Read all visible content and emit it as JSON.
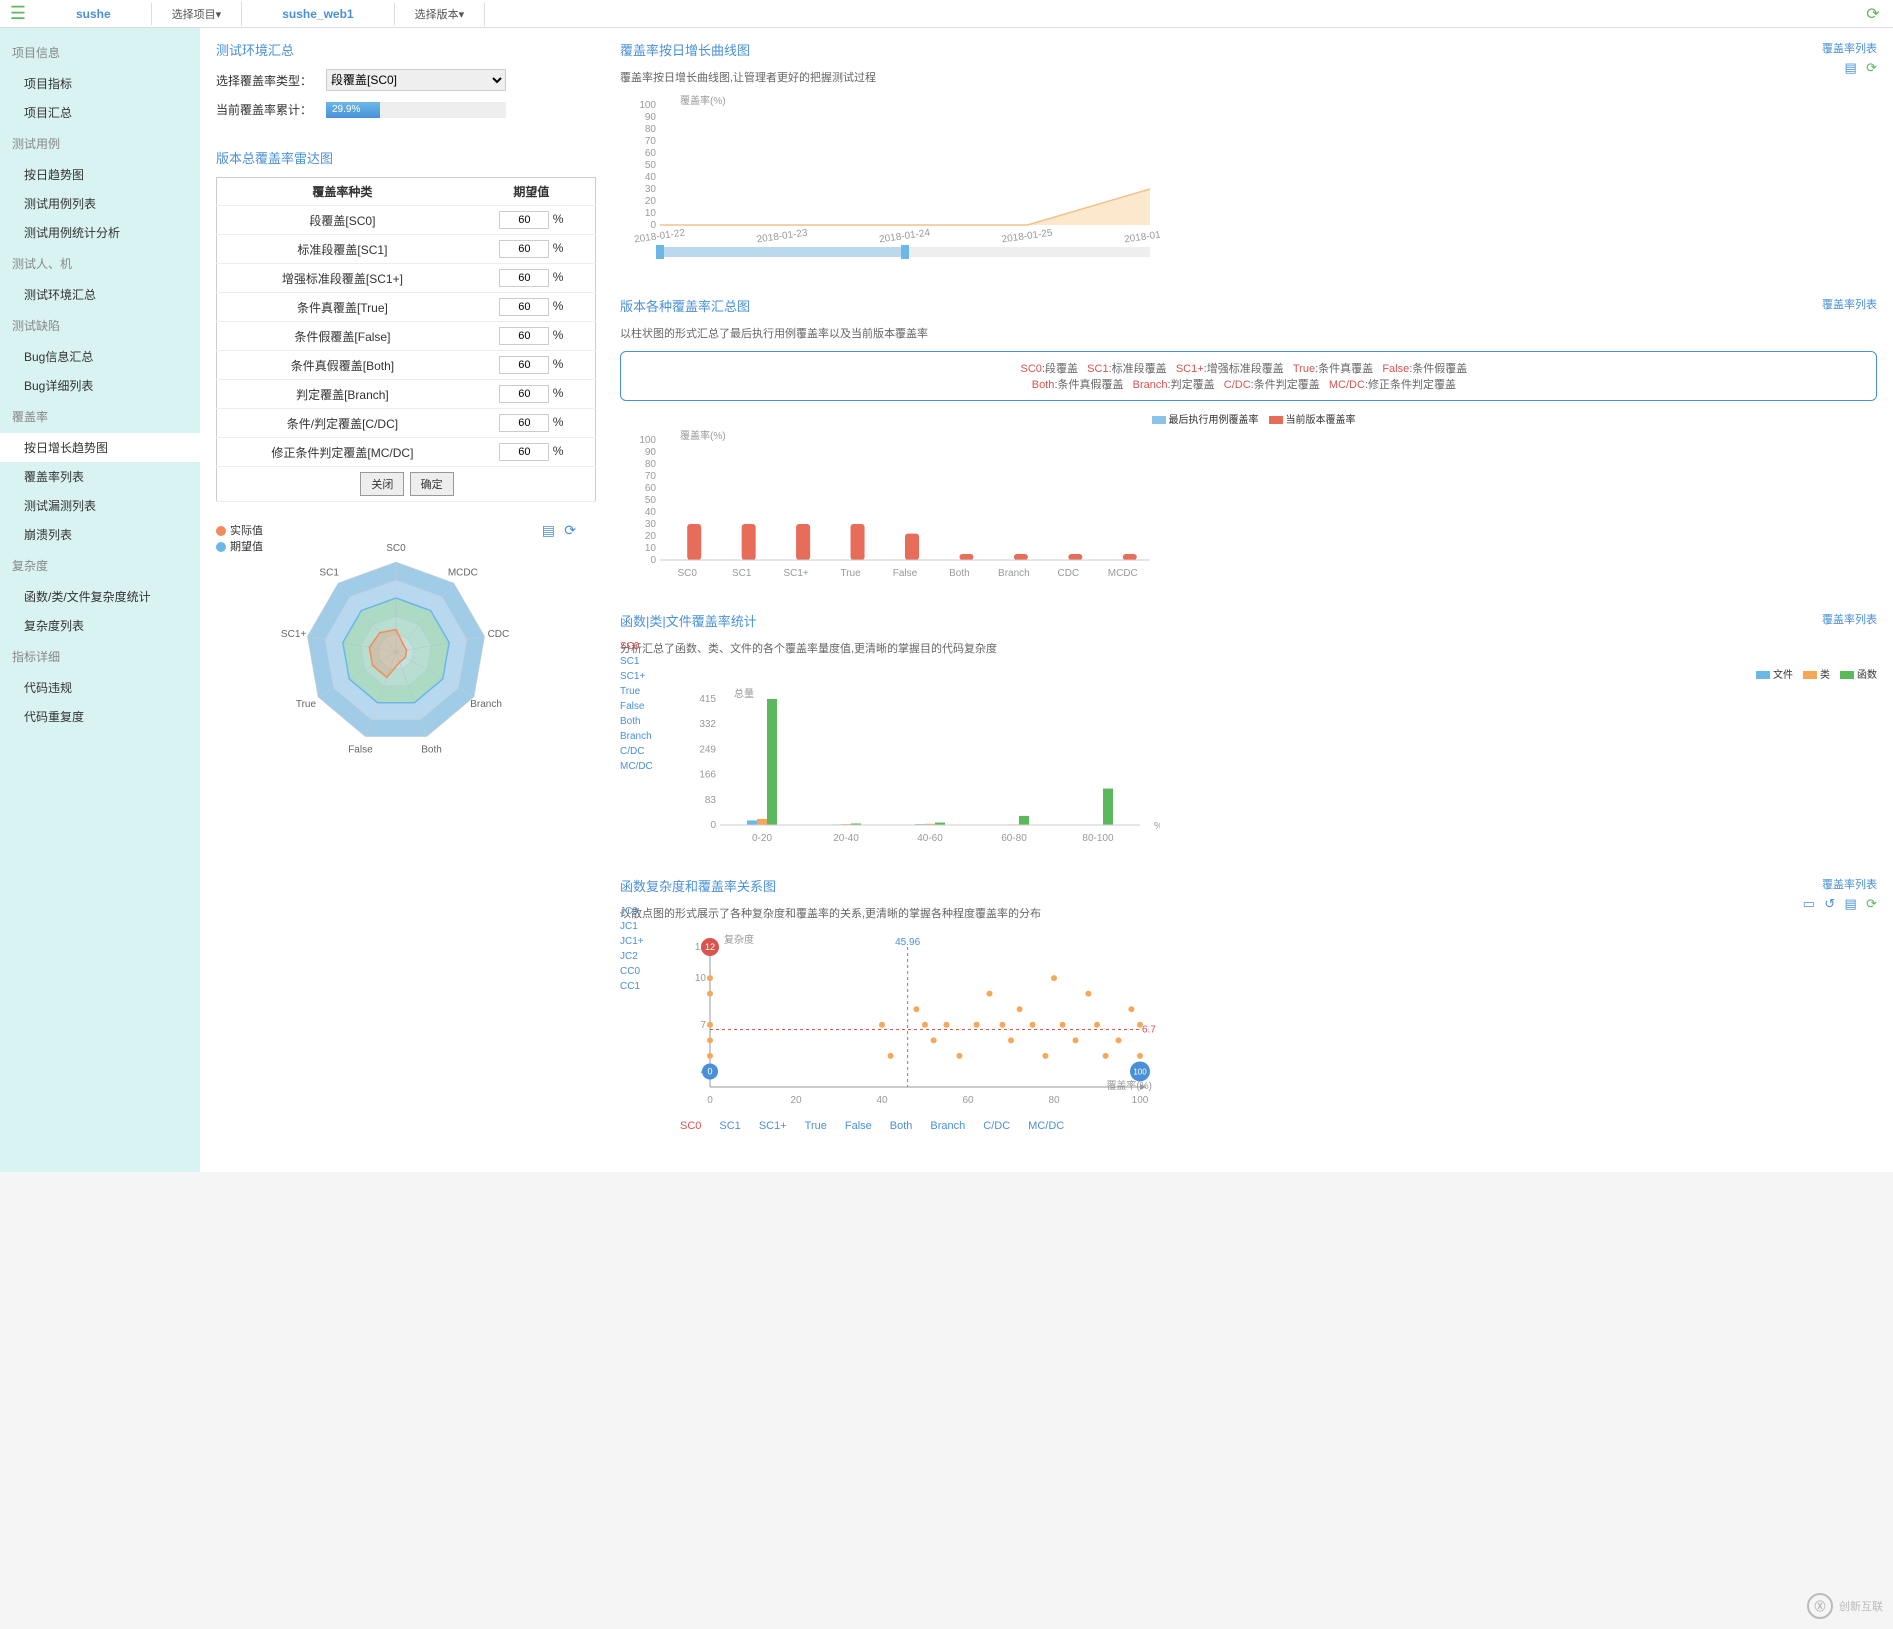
{
  "topbar": {
    "tab1": "sushe",
    "dropdown1": "选择项目▾",
    "tab2": "sushe_web1",
    "dropdown2": "选择版本▾"
  },
  "sidebar": {
    "groups": [
      {
        "title": "项目信息",
        "items": [
          "项目指标",
          "项目汇总"
        ]
      },
      {
        "title": "测试用例",
        "items": [
          "按日趋势图",
          "测试用例列表",
          "测试用例统计分析"
        ]
      },
      {
        "title": "测试人、机",
        "items": [
          "测试环境汇总"
        ]
      },
      {
        "title": "测试缺陷",
        "items": [
          "Bug信息汇总",
          "Bug详细列表"
        ]
      },
      {
        "title": "覆盖率",
        "items": [
          "按日增长趋势图",
          "覆盖率列表",
          "测试漏测列表",
          "崩溃列表"
        ]
      },
      {
        "title": "复杂度",
        "items": [
          "函数/类/文件复杂度统计",
          "复杂度列表"
        ]
      },
      {
        "title": "指标详细",
        "items": [
          "代码违规",
          "代码重复度"
        ]
      }
    ],
    "active_group": 4,
    "active_item": 0
  },
  "env": {
    "title": "测试环境汇总",
    "type_label": "选择覆盖率类型：",
    "type_value": "段覆盖[SC0]",
    "accum_label": "当前覆盖率累计：",
    "progress_pct": 29.9,
    "progress_text": "29.9%"
  },
  "radar_config": {
    "title": "版本总覆盖率雷达图",
    "col1": "覆盖率种类",
    "col2": "期望值",
    "rows": [
      {
        "name": "段覆盖[SC0]",
        "val": "60"
      },
      {
        "name": "标准段覆盖[SC1]",
        "val": "60"
      },
      {
        "name": "增强标准段覆盖[SC1+]",
        "val": "60"
      },
      {
        "name": "条件真覆盖[True]",
        "val": "60"
      },
      {
        "name": "条件假覆盖[False]",
        "val": "60"
      },
      {
        "name": "条件真假覆盖[Both]",
        "val": "60"
      },
      {
        "name": "判定覆盖[Branch]",
        "val": "60"
      },
      {
        "name": "条件/判定覆盖[C/DC]",
        "val": "60"
      },
      {
        "name": "修正条件判定覆盖[MC/DC]",
        "val": "60"
      }
    ],
    "btn_close": "关闭",
    "btn_ok": "确定"
  },
  "radar": {
    "legend_actual": "实际值",
    "legend_expect": "期望值",
    "color_actual": "#f28c5a",
    "color_expect": "#6bb8e8",
    "axes": [
      "SC0",
      "MCDC",
      "CDC",
      "Branch",
      "Both",
      "False",
      "True",
      "SC1+",
      "SC1"
    ],
    "rings": 5,
    "ring_colors": [
      "#e8f4d8",
      "#d9eec6",
      "#c9e8b3",
      "#b8d8f0",
      "#a0cce8"
    ],
    "actual_values": [
      0.25,
      0.12,
      0.12,
      0.12,
      0.12,
      0.3,
      0.3,
      0.3,
      0.28
    ],
    "expect_values": [
      0.6,
      0.6,
      0.6,
      0.6,
      0.6,
      0.6,
      0.6,
      0.6,
      0.6
    ]
  },
  "line_chart": {
    "title": "覆盖率按日增长曲线图",
    "subtitle": "覆盖率按日增长曲线图,让管理者更好的把握测试过程",
    "link": "覆盖率列表",
    "ylabel": "覆盖率(%)",
    "yticks": [
      0,
      10,
      20,
      30,
      40,
      50,
      60,
      70,
      80,
      90,
      100
    ],
    "xdates": [
      "2018-01-22",
      "2018-01-23",
      "2018-01-24",
      "2018-01-25",
      "2018-01-26"
    ],
    "series": [
      {
        "color": "#f5c088",
        "fill": "#fce8cc",
        "points": [
          0,
          0,
          0,
          0,
          30
        ]
      }
    ],
    "slider_color": "#6bb8e8"
  },
  "bar_chart": {
    "title": "版本各种覆盖率汇总图",
    "subtitle": "以柱状图的形式汇总了最后执行用例覆盖率以及当前版本覆盖率",
    "link": "覆盖率列表",
    "legend_box": [
      {
        "k": "SC0",
        "v": "段覆盖"
      },
      {
        "k": "SC1",
        "v": "标准段覆盖"
      },
      {
        "k": "SC1+",
        "v": "增强标准段覆盖"
      },
      {
        "k": "True",
        "v": "条件真覆盖"
      },
      {
        "k": "False",
        "v": "条件假覆盖"
      },
      {
        "k": "Both",
        "v": "条件真假覆盖"
      },
      {
        "k": "Branch",
        "v": "判定覆盖"
      },
      {
        "k": "C/DC",
        "v": "条件判定覆盖"
      },
      {
        "k": "MC/DC",
        "v": "修正条件判定覆盖"
      }
    ],
    "ylabel": "覆盖率(%)",
    "yticks": [
      0,
      10,
      20,
      30,
      40,
      50,
      60,
      70,
      80,
      90,
      100
    ],
    "categories": [
      "SC0",
      "SC1",
      "SC1+",
      "True",
      "False",
      "Both",
      "Branch",
      "CDC",
      "MCDC"
    ],
    "series": [
      {
        "name": "最后执行用例覆盖率",
        "color": "#8bc4e8",
        "values": [
          0,
          0,
          0,
          0,
          0,
          0,
          0,
          0,
          0
        ]
      },
      {
        "name": "当前版本覆盖率",
        "color": "#e86c5a",
        "values": [
          30,
          30,
          30,
          30,
          22,
          5,
          5,
          5,
          5
        ]
      }
    ]
  },
  "hist_chart": {
    "title": "函数|类|文件覆盖率统计",
    "subtitle": "分析汇总了函数、类、文件的各个覆盖率量度值,更清晰的掌握目的代码复杂度",
    "link": "覆盖率列表",
    "side_cats": [
      "SC0",
      "SC1",
      "SC1+",
      "True",
      "False",
      "Both",
      "Branch",
      "C/DC",
      "MC/DC"
    ],
    "active_cat": 0,
    "ylabel": "总量",
    "yticks": [
      0,
      83,
      166,
      249,
      332,
      415
    ],
    "xcats": [
      "0-20",
      "20-40",
      "40-60",
      "60-80",
      "80-100"
    ],
    "xunit": "%",
    "series": [
      {
        "name": "文件",
        "color": "#6bb8e8",
        "values": [
          15,
          2,
          3,
          1,
          0
        ]
      },
      {
        "name": "类",
        "color": "#f5a85a",
        "values": [
          20,
          3,
          4,
          2,
          0
        ]
      },
      {
        "name": "函数",
        "color": "#5bb85b",
        "values": [
          415,
          5,
          8,
          30,
          120
        ]
      }
    ]
  },
  "scatter_chart": {
    "title": "函数复杂度和覆盖率关系图",
    "subtitle": "以散点图的形式展示了各种复杂度和覆盖率的关系,更清晰的掌握各种程度覆盖率的分布",
    "link": "覆盖率列表",
    "side_cats": [
      "JC0",
      "JC1",
      "JC1+",
      "JC2",
      "CC0",
      "CC1"
    ],
    "xlabel": "覆盖率(%)",
    "ylabel": "复杂度",
    "yticks": [
      4,
      7,
      10,
      12
    ],
    "xticks": [
      0,
      20,
      40,
      60,
      80,
      100
    ],
    "vline_x": 45.96,
    "vline_label": "45.96",
    "hline_y": 6.7,
    "hline_label": "6.7",
    "point_color": "#f5a85a",
    "marker_red": "#d9534f",
    "marker_blue": "#4a90d9",
    "marker_red_val": "12",
    "marker_blue_val": "0",
    "marker_right_val": "100",
    "points": [
      [
        0,
        12
      ],
      [
        0,
        10
      ],
      [
        0,
        9
      ],
      [
        0,
        7
      ],
      [
        0,
        6
      ],
      [
        0,
        5
      ],
      [
        0,
        4
      ],
      [
        40,
        7
      ],
      [
        42,
        5
      ],
      [
        48,
        8
      ],
      [
        50,
        7
      ],
      [
        52,
        6
      ],
      [
        55,
        7
      ],
      [
        58,
        5
      ],
      [
        62,
        7
      ],
      [
        65,
        9
      ],
      [
        68,
        7
      ],
      [
        70,
        6
      ],
      [
        72,
        8
      ],
      [
        75,
        7
      ],
      [
        78,
        5
      ],
      [
        80,
        10
      ],
      [
        82,
        7
      ],
      [
        85,
        6
      ],
      [
        88,
        9
      ],
      [
        90,
        7
      ],
      [
        92,
        5
      ],
      [
        95,
        6
      ],
      [
        98,
        8
      ],
      [
        100,
        7
      ],
      [
        100,
        5
      ],
      [
        100,
        4
      ]
    ],
    "tabs": [
      "SC0",
      "SC1",
      "SC1+",
      "True",
      "False",
      "Both",
      "Branch",
      "C/DC",
      "MC/DC"
    ]
  },
  "watermark": "创新互联"
}
